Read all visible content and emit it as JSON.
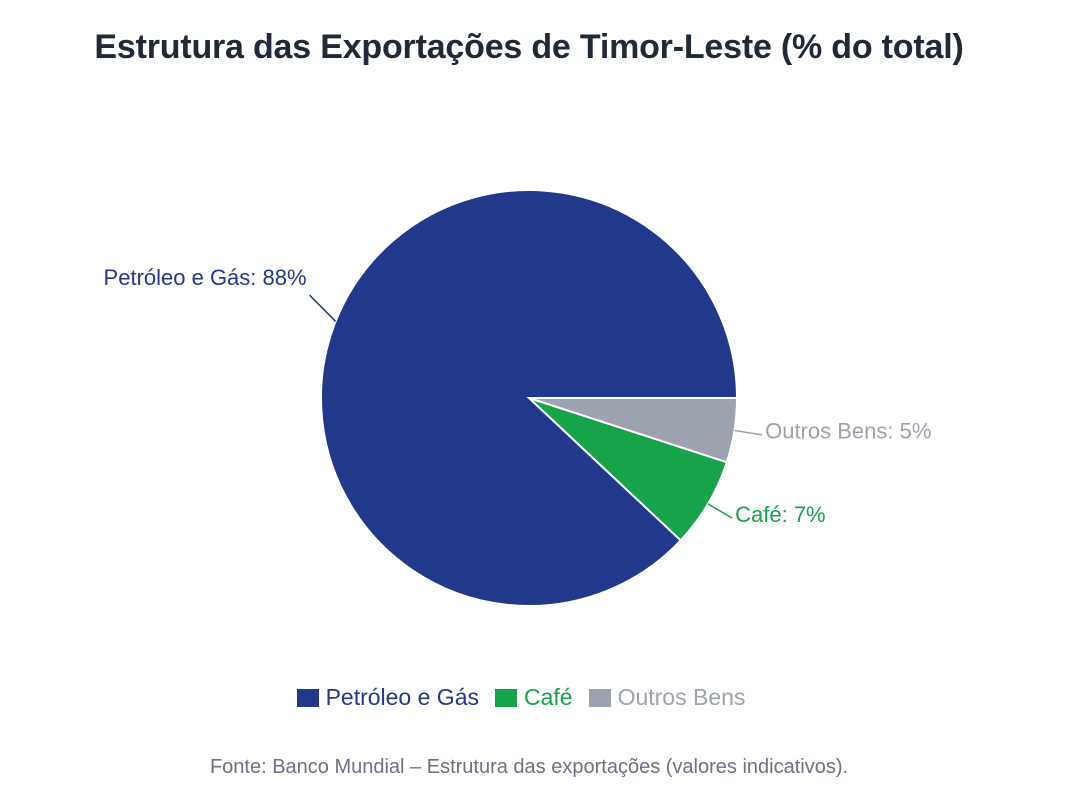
{
  "chart_data": {
    "type": "pie",
    "title": "Estrutura das Exportações de Timor-Leste (% do total)",
    "categories": [
      "Petróleo e Gás",
      "Café",
      "Outros Bens"
    ],
    "values": [
      88,
      7,
      5
    ],
    "slice_labels": [
      "Petróleo e Gás: 88%",
      "Café: 7%",
      "Outros Bens: 5%"
    ],
    "colors": [
      "#22388a",
      "#16a34a",
      "#9ca3af"
    ],
    "legend_position": "bottom"
  },
  "source_note": "Fonte: Banco Mundial – Estrutura das exportações (valores indicativos)."
}
